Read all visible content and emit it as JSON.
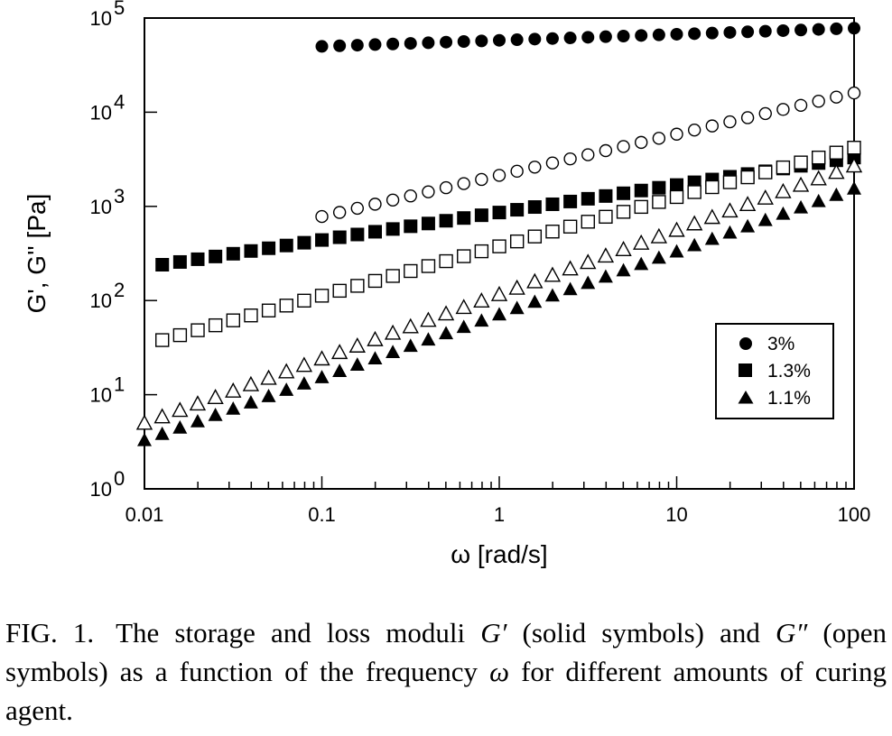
{
  "chart_data": {
    "type": "scatter",
    "xlabel": "ω [rad/s]",
    "ylabel": "G', G'' [Pa]",
    "xscale": "log",
    "yscale": "log",
    "xlim": [
      0.01,
      100
    ],
    "ylim": [
      1,
      100000
    ],
    "x_tick_labels": [
      "0.01",
      "0.1",
      "1",
      "10",
      "100"
    ],
    "y_tick_labels": [
      {
        "base": "10",
        "exp": "0"
      },
      {
        "base": "10",
        "exp": "1"
      },
      {
        "base": "10",
        "exp": "2"
      },
      {
        "base": "10",
        "exp": "3"
      },
      {
        "base": "10",
        "exp": "4"
      },
      {
        "base": "10",
        "exp": "5"
      }
    ],
    "legend_position": "lower-right",
    "legend": [
      {
        "label": "3%",
        "marker": "circle"
      },
      {
        "label": "1.3%",
        "marker": "square"
      },
      {
        "label": "1.1%",
        "marker": "triangle"
      }
    ],
    "series": [
      {
        "concentration": "3%",
        "modulus": "G'",
        "marker": "circle",
        "filled": true,
        "x_range": [
          0.1,
          100
        ],
        "points": 31,
        "y_start": 50000,
        "y_end": 78000
      },
      {
        "concentration": "3%",
        "modulus": "G''",
        "marker": "circle",
        "filled": false,
        "x_range": [
          0.1,
          100
        ],
        "points": 31,
        "y_start": 780,
        "y_end": 16000
      },
      {
        "concentration": "1.3%",
        "modulus": "G'",
        "marker": "square",
        "filled": true,
        "x_range": [
          0.0126,
          100
        ],
        "points": 40,
        "y_start": 240,
        "y_end": 3300
      },
      {
        "concentration": "1.3%",
        "modulus": "G''",
        "marker": "square",
        "filled": false,
        "x_range": [
          0.0126,
          100
        ],
        "points": 40,
        "y_start": 38,
        "y_end": 4200
      },
      {
        "concentration": "1.1%",
        "modulus": "G'",
        "marker": "triangle",
        "filled": true,
        "x_range": [
          0.01,
          100
        ],
        "points": 41,
        "y_start": 3.3,
        "y_end": 1550
      },
      {
        "concentration": "1.1%",
        "modulus": "G''",
        "marker": "triangle",
        "filled": false,
        "x_range": [
          0.01,
          100
        ],
        "points": 41,
        "y_start": 5.0,
        "y_end": 2700
      }
    ]
  },
  "caption": {
    "fig_label": "FIG. 1.",
    "text_before_g1": "The storage and loss moduli ",
    "g_prime": "G′",
    "text_mid": " (solid symbols) and ",
    "g_double_prime": "G″",
    "text_after_g2": " (open symbols) as a function of the frequency ",
    "omega": "ω",
    "text_end": " for different amounts of curing agent."
  }
}
